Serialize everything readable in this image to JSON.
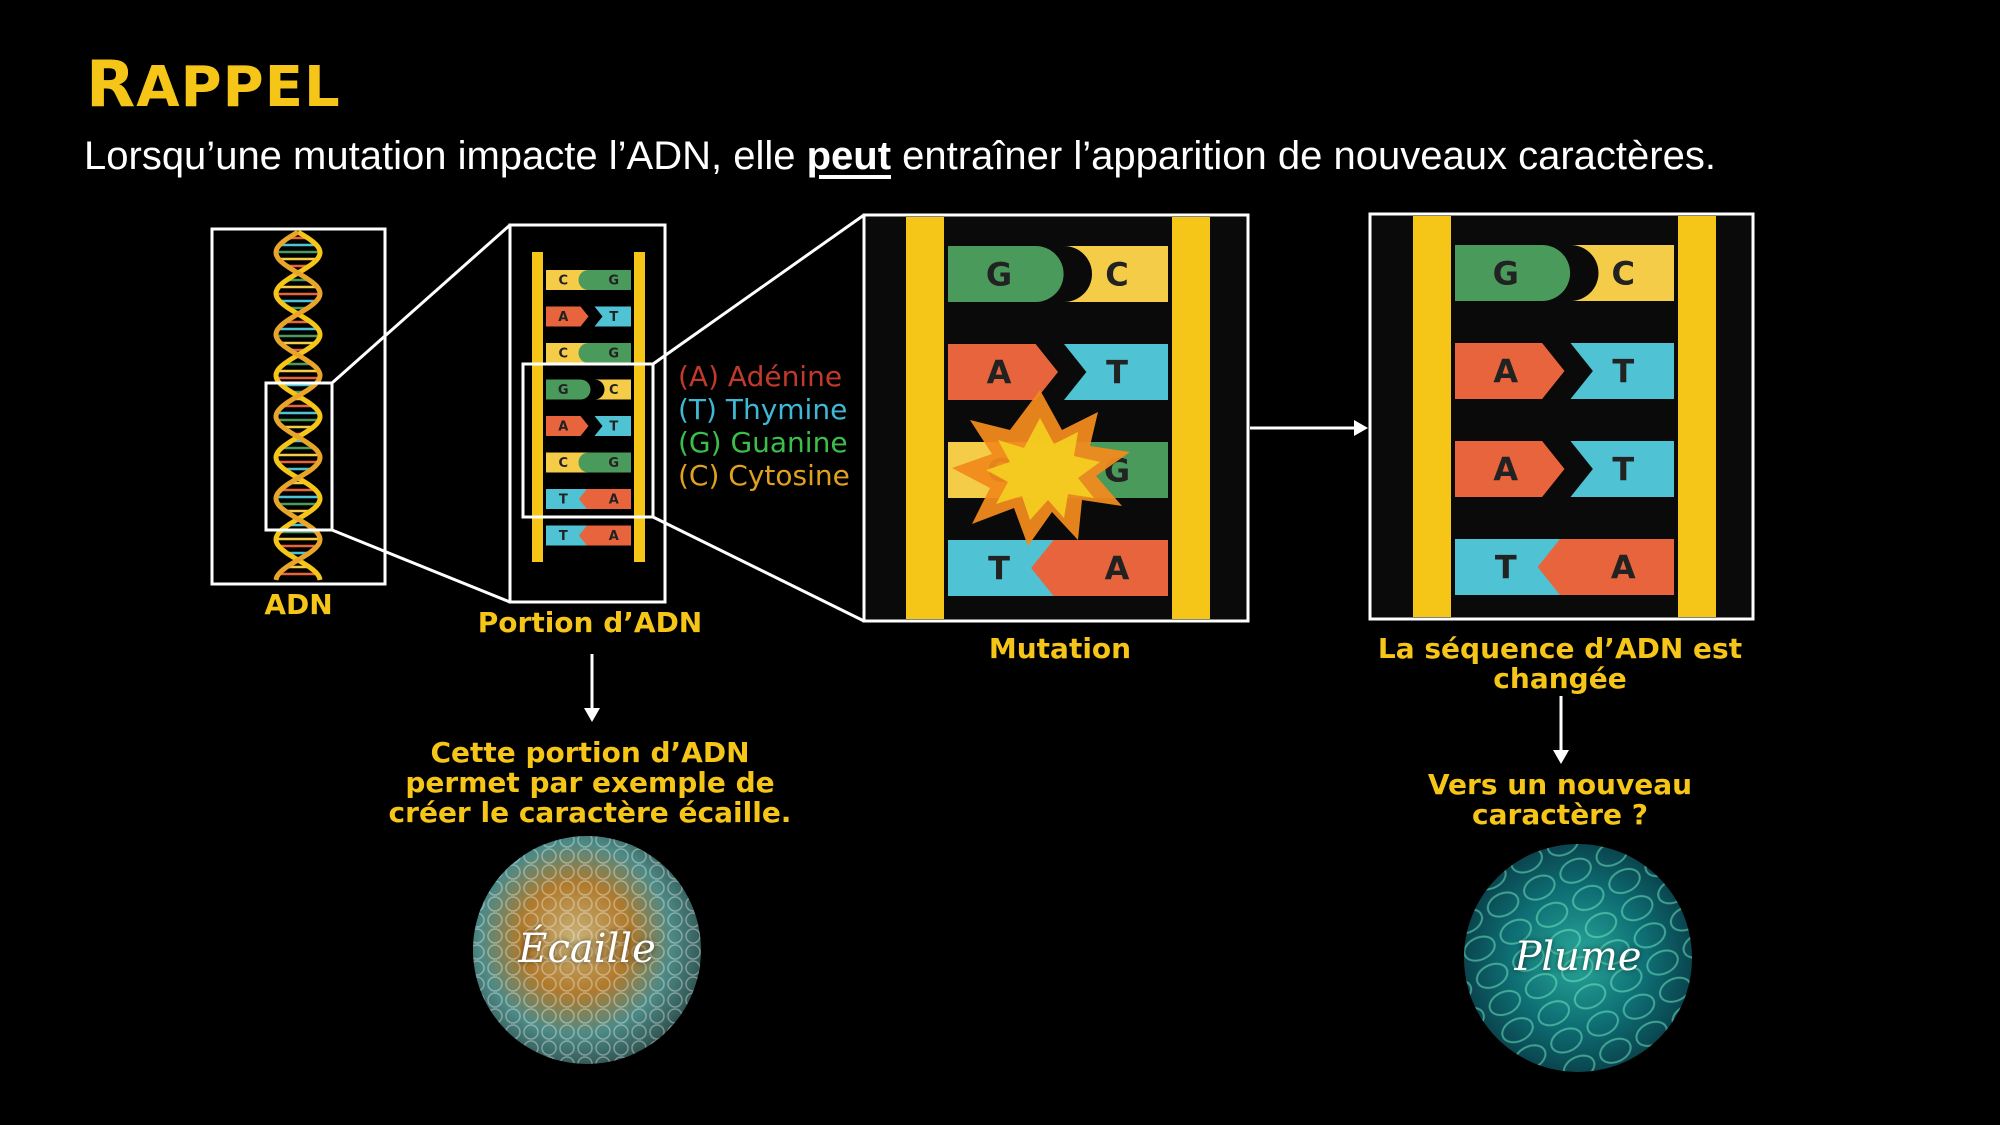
{
  "title": {
    "first_letter": "R",
    "rest": "APPEL"
  },
  "subtitle": {
    "before": "Lorsqu’une mutation impacte l’ADN, elle ",
    "emph": "peut",
    "after": " entraîner l’apparition de nouveaux caractères."
  },
  "labels": {
    "adn": "ADN",
    "portion": "Portion d’ADN",
    "mutation": "Mutation",
    "sequence_line1": "La séquence d’ADN est",
    "sequence_line2": "changée",
    "portion_desc_line1": "Cette portion d’ADN",
    "portion_desc_line2": "permet par exemple de",
    "portion_desc_line3": "créer le caractère écaille.",
    "new_trait_line1": "Vers un nouveau",
    "new_trait_line2": "caractère ?"
  },
  "legend": [
    {
      "text": "(A) Adénine",
      "color": "#c0392b"
    },
    {
      "text": "(T) Thymine",
      "color": "#3fb8d6"
    },
    {
      "text": "(G) Guanine",
      "color": "#3cbf4a"
    },
    {
      "text": "(C) Cytosine",
      "color": "#e0a020"
    }
  ],
  "small_ladder_pairs": [
    {
      "left": "C",
      "right": "G"
    },
    {
      "left": "A",
      "right": "T"
    },
    {
      "left": "C",
      "right": "G"
    },
    {
      "left": "G",
      "right": "C"
    },
    {
      "left": "A",
      "right": "T"
    },
    {
      "left": "C",
      "right": "G"
    },
    {
      "left": "T",
      "right": "A"
    },
    {
      "left": "T",
      "right": "A"
    }
  ],
  "mutation_pairs": [
    {
      "left": "G",
      "right": "C"
    },
    {
      "left": "A",
      "right": "T"
    },
    {
      "left": "C",
      "right": "G"
    },
    {
      "left": "T",
      "right": "A"
    }
  ],
  "changed_pairs": [
    {
      "left": "G",
      "right": "C"
    },
    {
      "left": "A",
      "right": "T"
    },
    {
      "left": "A",
      "right": "T"
    },
    {
      "left": "T",
      "right": "A"
    }
  ],
  "circles": {
    "scale": "Écaille",
    "feather": "Plume"
  },
  "colors": {
    "A": "#e8643c",
    "T": "#4fc3d3",
    "G": "#4a9a5c",
    "C": "#f5cc48",
    "rail": "#f5c518",
    "accent": "#f5c518"
  }
}
